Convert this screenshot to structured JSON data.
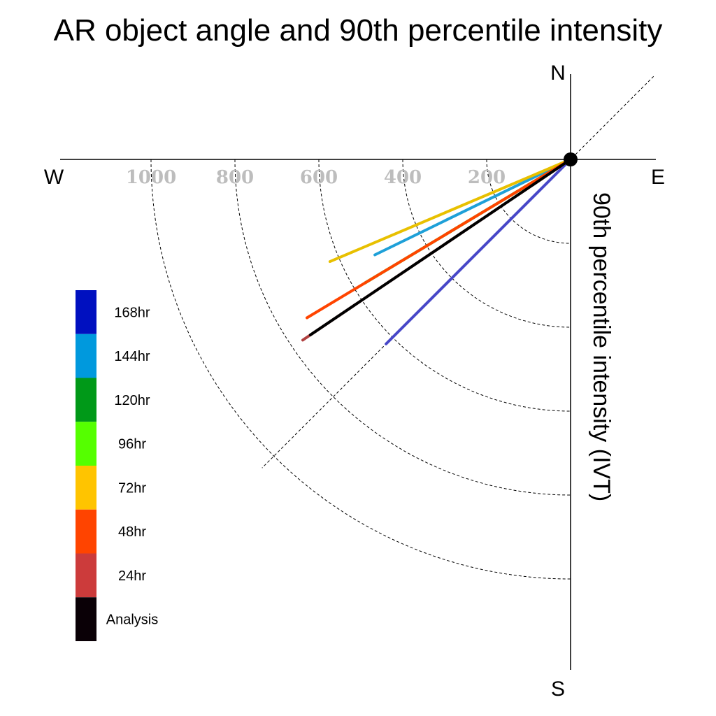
{
  "chart_data": {
    "type": "line",
    "title": "AR object angle and 90th percentile intensity",
    "radial_axis_label": "90th percentile intensity (IVT)",
    "compass": {
      "north": "N",
      "south": "S",
      "east": "E",
      "west": "W"
    },
    "radial_ticks": [
      {
        "value": 200,
        "label": "200"
      },
      {
        "value": 400,
        "label": "400"
      },
      {
        "value": 600,
        "label": "600"
      },
      {
        "value": 800,
        "label": "800"
      },
      {
        "value": 1000,
        "label": "1000"
      }
    ],
    "radial_range": [
      0,
      1200
    ],
    "grid": true,
    "legend_position": "left",
    "series": [
      {
        "name": "168hr",
        "color": "#0010c0",
        "line_color": "#4848c8",
        "angle_deg": 225,
        "intensity": 622
      },
      {
        "name": "144hr",
        "color": "#0099dd",
        "line_color": "#1ea0d8",
        "angle_deg": 206,
        "intensity": 519
      },
      {
        "name": "120hr",
        "color": "#009918",
        "line_color": "#2a7a16",
        "angle_deg": 211,
        "intensity": 572
      },
      {
        "name": "96hr",
        "color": "#55ff00",
        "line_color": "#55ff00",
        "angle_deg": 211,
        "intensity": 572
      },
      {
        "name": "72hr",
        "color": "#ffc400",
        "line_color": "#e8c000",
        "angle_deg": 203,
        "intensity": 623
      },
      {
        "name": "48hr",
        "color": "#ff4400",
        "line_color": "#ff4400",
        "angle_deg": 211,
        "intensity": 733
      },
      {
        "name": "24hr",
        "color": "#cc3b3b",
        "line_color": "#b04040",
        "angle_deg": 214,
        "intensity": 770
      },
      {
        "name": "Analysis",
        "color": "#0a0006",
        "line_color": "#000000",
        "angle_deg": 214,
        "intensity": 748
      }
    ]
  }
}
